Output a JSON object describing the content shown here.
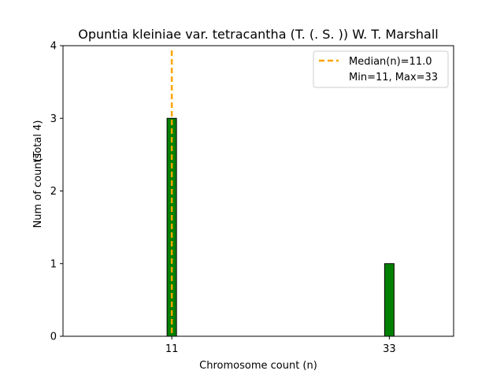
{
  "chart_data": {
    "type": "bar",
    "title": "Opuntia kleiniae var. tetracantha (T. (. S. )) W. T. Marshall",
    "xlabel": "Chromosome count (n)",
    "ylabel": "Num of counts",
    "ylabel_note": "(Total 4)",
    "categories": [
      "11",
      "33"
    ],
    "x": [
      11,
      33
    ],
    "values": [
      3,
      1
    ],
    "xlim": [
      0,
      39.5
    ],
    "ylim": [
      0,
      4
    ],
    "yticks": [
      0,
      1,
      2,
      3,
      4
    ],
    "xticks": [
      11,
      33
    ],
    "bar_color": "#008000",
    "bar_edge_color": "#000000",
    "median": 11.0,
    "median_color": "#ffa500",
    "legend": {
      "position": "top-right",
      "entries": [
        "Median(n)=11.0",
        "Min=11, Max=33"
      ]
    },
    "grid": false
  }
}
